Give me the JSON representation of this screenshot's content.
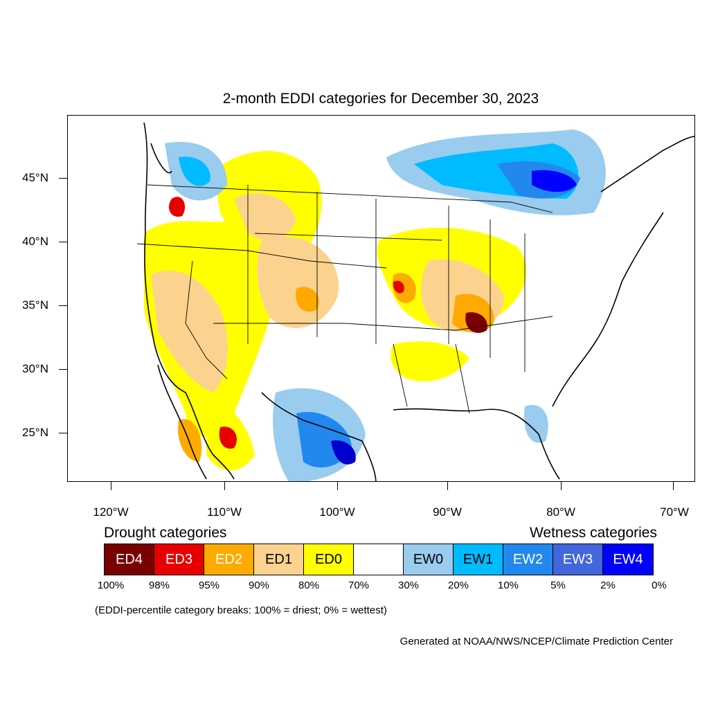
{
  "title": "2-month EDDI categories for December 30, 2023",
  "lat_labels": [
    "45°N",
    "40°N",
    "35°N",
    "30°N",
    "25°N"
  ],
  "lon_labels": [
    "120°W",
    "110°W",
    "100°W",
    "90°W",
    "80°W",
    "70°W"
  ],
  "legend": {
    "drought_heading": "Drought categories",
    "wetness_heading": "Wetness categories",
    "categories": [
      {
        "label": "ED4",
        "color": "#7a0000"
      },
      {
        "label": "ED3",
        "color": "#e60000"
      },
      {
        "label": "ED2",
        "color": "#ffaa00"
      },
      {
        "label": "ED1",
        "color": "#fcd38e"
      },
      {
        "label": "ED0",
        "color": "#ffff00"
      },
      {
        "label": "",
        "color": "#ffffff"
      },
      {
        "label": "EW0",
        "color": "#99ccee"
      },
      {
        "label": "EW1",
        "color": "#00bbff"
      },
      {
        "label": "EW2",
        "color": "#2288ee"
      },
      {
        "label": "EW3",
        "color": "#4466dd"
      },
      {
        "label": "EW4",
        "color": "#0000ff"
      }
    ],
    "breaks": [
      "100%",
      "98%",
      "95%",
      "90%",
      "80%",
      "70%",
      "30%",
      "20%",
      "10%",
      "5%",
      "2%",
      "0%"
    ]
  },
  "note": "(EDDI-percentile category breaks: 100% = driest; 0% = wettest)",
  "credit": "Generated at NOAA/NWS/NCEP/Climate Prediction Center"
}
